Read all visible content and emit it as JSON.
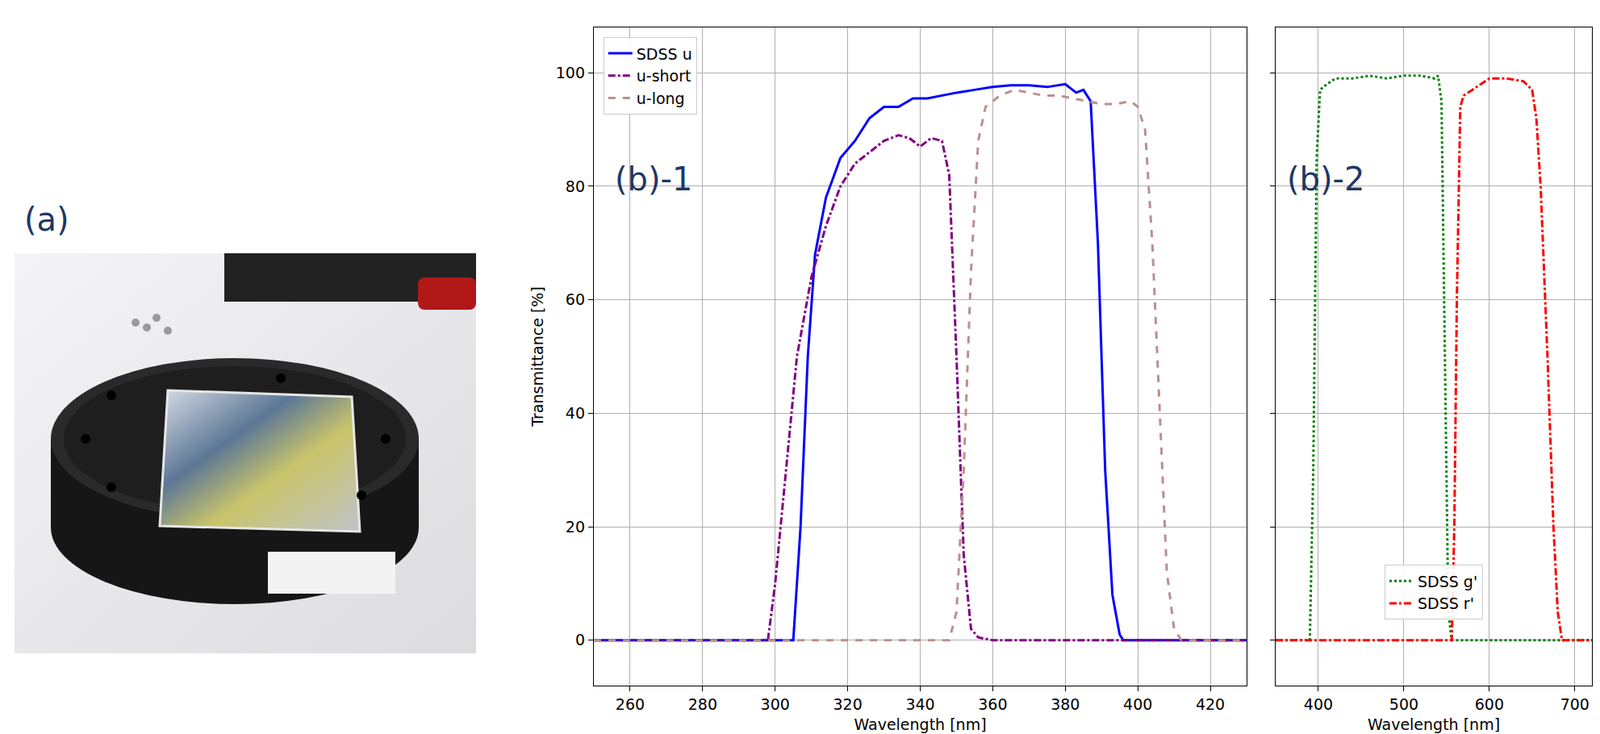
{
  "photo_panel": {
    "label": "(a)"
  },
  "chart_data": [
    {
      "type": "line",
      "panel_label": "(b)-1",
      "x_label": "Wavelength [nm]",
      "y_label": "Transmittance [%]",
      "xlim": [
        250,
        430
      ],
      "xticks": [
        260,
        280,
        300,
        320,
        340,
        360,
        380,
        400,
        420
      ],
      "ylim": [
        -8,
        108
      ],
      "yticks": [
        0,
        20,
        40,
        60,
        80,
        100
      ],
      "grid": true,
      "legend": "upper left",
      "series": [
        {
          "name": "SDSS u",
          "color": "#0000ff",
          "line_style": "solid",
          "x": [
            250,
            305,
            307,
            309,
            311,
            314,
            318,
            322,
            326,
            330,
            334,
            338,
            342,
            346,
            350,
            355,
            360,
            365,
            370,
            375,
            380,
            383,
            385,
            387,
            389,
            391,
            393,
            395,
            396,
            430
          ],
          "values": [
            0,
            0,
            20,
            50,
            68,
            78,
            85,
            88,
            92,
            94,
            94,
            95.5,
            95.5,
            96,
            96.5,
            97,
            97.5,
            97.8,
            97.8,
            97.5,
            98,
            96.5,
            97,
            95,
            70,
            30,
            8,
            1,
            0,
            0
          ]
        },
        {
          "name": "u-short",
          "color": "#800080",
          "line_style": "dashdot",
          "x": [
            250,
            298,
            300,
            303,
            306,
            310,
            314,
            318,
            322,
            326,
            330,
            334,
            337,
            340,
            343,
            346,
            348,
            350,
            352,
            354,
            356,
            360,
            430
          ],
          "values": [
            0,
            0,
            10,
            30,
            50,
            64,
            73,
            80,
            84,
            86,
            88,
            89,
            88.5,
            87,
            88.5,
            88,
            82,
            50,
            15,
            2,
            0.5,
            0,
            0
          ]
        },
        {
          "name": "u-long",
          "color": "#bc8f8f",
          "line_style": "dash",
          "x": [
            250,
            348,
            350,
            352,
            354,
            356,
            358,
            362,
            366,
            370,
            374,
            378,
            382,
            386,
            390,
            394,
            398,
            400,
            402,
            404,
            406,
            408,
            410,
            412,
            430
          ],
          "values": [
            0,
            0,
            5,
            30,
            65,
            88,
            94,
            96,
            97,
            96.5,
            96,
            96,
            95.5,
            95,
            94.5,
            94.5,
            95,
            94,
            90,
            70,
            40,
            12,
            2,
            0,
            0
          ]
        }
      ]
    },
    {
      "type": "line",
      "panel_label": "(b)-2",
      "x_label": "Wavelength [nm]",
      "xlim": [
        350,
        720
      ],
      "xticks": [
        400,
        500,
        600,
        700
      ],
      "ylim": [
        -8,
        108
      ],
      "yticks": [
        0,
        20,
        40,
        60,
        80,
        100
      ],
      "grid": true,
      "legend": "lower center",
      "tick_labels": "x",
      "series": [
        {
          "name": "SDSS g'",
          "color": "#008000",
          "line_style": "dot",
          "x": [
            350,
            390,
            394,
            398,
            402,
            410,
            420,
            440,
            460,
            480,
            500,
            520,
            536,
            540,
            544,
            548,
            552,
            556,
            720
          ],
          "values": [
            0,
            0,
            30,
            85,
            97,
            98,
            99,
            99,
            99.5,
            99,
            99.5,
            99.5,
            99,
            99.5,
            95,
            50,
            5,
            0,
            0
          ]
        },
        {
          "name": "SDSS r'",
          "color": "#ff0000",
          "line_style": "dashdot",
          "x": [
            350,
            556,
            559,
            562,
            566,
            570,
            580,
            600,
            620,
            640,
            650,
            655,
            660,
            668,
            675,
            680,
            685,
            720
          ],
          "values": [
            0,
            0,
            20,
            60,
            94,
            96,
            97,
            99,
            99,
            98.5,
            97,
            92,
            80,
            50,
            20,
            5,
            0,
            0
          ]
        }
      ]
    }
  ]
}
